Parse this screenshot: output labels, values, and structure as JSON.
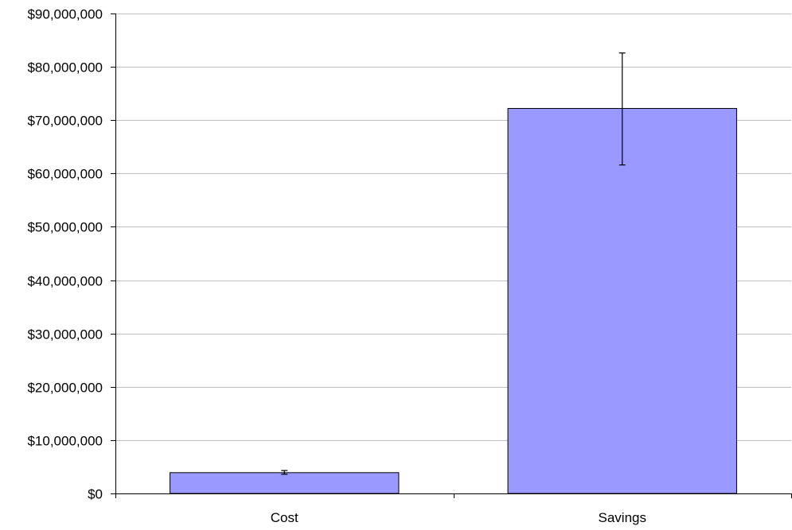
{
  "chart_data": {
    "type": "bar",
    "title": "",
    "xlabel": "",
    "ylabel": "",
    "categories": [
      "Cost",
      "Savings"
    ],
    "values": [
      3900000,
      72200000
    ],
    "error_bars": [
      {
        "low": 3600000,
        "high": 4300000
      },
      {
        "low": 61600000,
        "high": 82600000
      }
    ],
    "ylim": [
      0,
      90000000
    ],
    "yticks": [
      0,
      10000000,
      20000000,
      30000000,
      40000000,
      50000000,
      60000000,
      70000000,
      80000000,
      90000000
    ],
    "ytick_labels": [
      "$0",
      "$10,000,000",
      "$20,000,000",
      "$30,000,000",
      "$40,000,000",
      "$50,000,000",
      "$60,000,000",
      "$70,000,000",
      "$80,000,000",
      "$90,000,000"
    ],
    "grid": true,
    "legend": "none",
    "colors": {
      "bar_fill": "#9999ff",
      "bar_stroke": "#000000",
      "grid": "#c0c0c0",
      "axis": "#000000"
    }
  }
}
